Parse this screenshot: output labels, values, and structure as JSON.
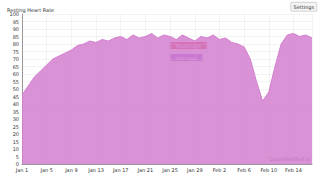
{
  "chart_data": {
    "type": "area",
    "title": "Resting Heart Rate",
    "button": "Settings",
    "source": "QuantifiedSelf.io",
    "categories": [
      "Jan 1",
      null,
      null,
      null,
      "Jan 5",
      null,
      null,
      null,
      "Jan 9",
      null,
      null,
      null,
      "Jan 13",
      null,
      null,
      null,
      "Jan 17",
      null,
      null,
      null,
      "Jan 21",
      null,
      null,
      null,
      "Jan 25",
      null,
      null,
      null,
      "Jan 29",
      null,
      null,
      null,
      "Feb 2",
      null,
      null,
      null,
      "Feb 6",
      null,
      null,
      null,
      "Feb 10",
      null,
      null,
      null,
      "Feb 14",
      null,
      null,
      null
    ],
    "values": [
      46,
      52,
      58,
      62,
      66,
      70,
      72,
      74,
      76,
      79,
      80,
      82,
      81,
      83,
      82,
      84,
      85,
      83,
      86,
      84,
      85,
      87,
      84,
      86,
      85,
      83,
      86,
      84,
      82,
      85,
      84,
      86,
      83,
      84,
      81,
      80,
      78,
      70,
      55,
      42,
      48,
      65,
      80,
      86,
      87,
      85,
      86,
      84
    ],
    "color": "#d47fcf",
    "ylim": [
      0,
      100
    ],
    "yticks": [
      0,
      5,
      10,
      15,
      20,
      25,
      30,
      35,
      40,
      45,
      50,
      55,
      60,
      65,
      70,
      75,
      80,
      85,
      90,
      95,
      100
    ],
    "grid": true,
    "annotations": [
      {
        "text": "Maximum",
        "color": "#e03030"
      },
      {
        "text": "Average",
        "color": "#8a5ad8"
      }
    ]
  }
}
